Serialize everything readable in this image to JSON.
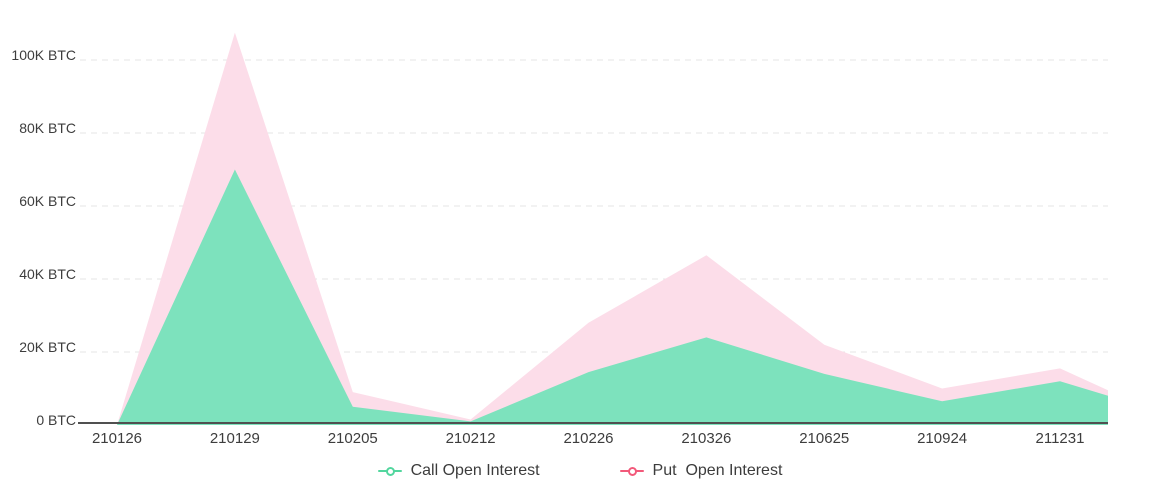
{
  "chart_data": {
    "type": "area",
    "stacked": true,
    "title": "",
    "categories": [
      "210126",
      "210129",
      "210205",
      "210212",
      "210226",
      "210326",
      "210625",
      "210924",
      "211231"
    ],
    "series": [
      {
        "name": "Call Open Interest",
        "line_color": "#52d69e",
        "fill_color": "#7de2bd",
        "values": [
          0,
          70000,
          5000,
          1000,
          14500,
          24000,
          14000,
          6500,
          12000
        ]
      },
      {
        "name": "Put  Open Interest",
        "line_color": "#f2597a",
        "fill_color": "#fcdde9",
        "values": [
          0,
          37500,
          4000,
          500,
          13500,
          22500,
          8000,
          3500,
          3500
        ]
      }
    ],
    "right_edge_clip": {
      "call": 8000,
      "put": 1500
    },
    "y_ticks": [
      "100K BTC",
      "80K BTC",
      "60K BTC",
      "40K BTC",
      "20K BTC",
      "0 BTC"
    ],
    "y_tick_values": [
      100000,
      80000,
      60000,
      40000,
      20000,
      0
    ],
    "ylim": [
      0,
      110000
    ],
    "xlabel": "",
    "ylabel": "",
    "grid": {
      "horizontal_dashed": true,
      "color": "#e5e5e5"
    },
    "axis_line_color": "#505050",
    "legend_position": "bottom"
  },
  "legend": {
    "items": [
      {
        "label": "Call Open Interest",
        "color": "#52d69e"
      },
      {
        "label": "Put  Open Interest",
        "color": "#f2597a"
      }
    ]
  }
}
